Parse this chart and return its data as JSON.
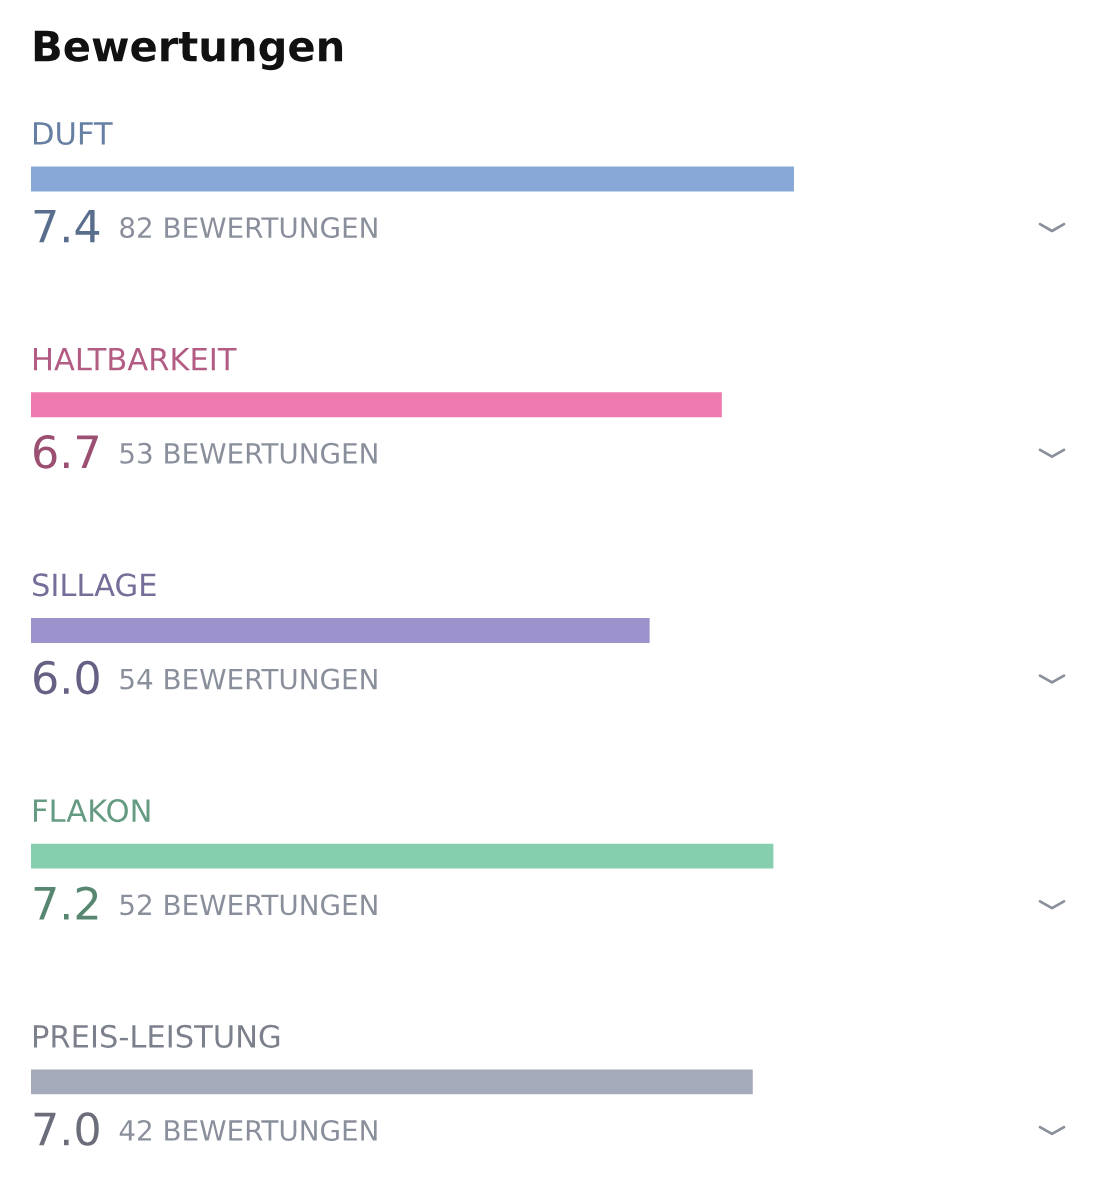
{
  "chart_data": {
    "type": "bar",
    "orientation": "horizontal",
    "title": "Bewertungen",
    "categories": [
      "DUFT",
      "HALTBARKEIT",
      "SILLAGE",
      "FLAKON",
      "PREIS-LEISTUNG"
    ],
    "values": [
      7.4,
      6.7,
      6.0,
      7.2,
      7.0
    ],
    "value_labels": [
      "7.4",
      "6.7",
      "6.0",
      "7.2",
      "7.0"
    ],
    "colors": [
      "#88a9d8",
      "#ee7aaf",
      "#9d93cc",
      "#86cfae",
      "#a5aabb"
    ],
    "annotations": [
      "82 BEWERTUNGEN",
      "53 BEWERTUNGEN",
      "54 BEWERTUNGEN",
      "52 BEWERTUNGEN",
      "42 BEWERTUNGEN"
    ]
  }
}
